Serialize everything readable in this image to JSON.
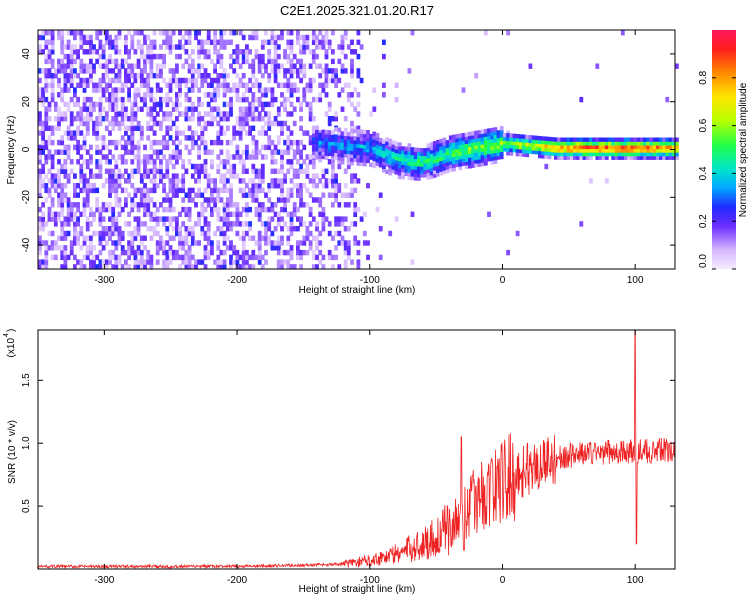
{
  "title": "C2E1.2025.321.01.20.R17",
  "colors": {
    "snr_line": "#ee2222",
    "spectrogram_low": "#7a2cff",
    "frame": "#000000"
  },
  "chart_data": [
    {
      "id": "spectrogram",
      "type": "heatmap",
      "xlabel": "Height of straight line (km)",
      "ylabel": "Frequency (Hz)",
      "xlim": [
        -350,
        130
      ],
      "ylim": [
        -50,
        50
      ],
      "x_ticks": [
        -300,
        -200,
        -100,
        0,
        100
      ],
      "y_ticks": [
        -40,
        -20,
        0,
        20,
        40
      ],
      "x_tick_labels": [
        "-300",
        "-200",
        "-100",
        "0",
        "100"
      ],
      "y_tick_labels": [
        "-40",
        "-20",
        "0",
        "20",
        "40"
      ],
      "colorbar": {
        "label": "Normalized spectral amplitude",
        "range": [
          0.0,
          1.0
        ],
        "ticks": [
          0.0,
          0.2,
          0.4,
          0.6,
          0.8
        ],
        "tick_labels": [
          "0.0",
          "0.2",
          "0.4",
          "0.6",
          "0.8"
        ]
      },
      "regions": [
        {
          "x_range": [
            -350,
            -110
          ],
          "description": "broadband noise, amplitude ~0.05–0.35"
        },
        {
          "x_range": [
            -140,
            130
          ],
          "feature": "narrow line near 0 Hz",
          "amplitude": [
            0.3,
            1.0
          ]
        }
      ],
      "signal_track": [
        {
          "x": -140,
          "f": 2,
          "amp": 0.3
        },
        {
          "x": -100,
          "f": 0,
          "amp": 0.38
        },
        {
          "x": -80,
          "f": -5,
          "amp": 0.45
        },
        {
          "x": -60,
          "f": -6,
          "amp": 0.48
        },
        {
          "x": -40,
          "f": -2,
          "amp": 0.55
        },
        {
          "x": -20,
          "f": 0,
          "amp": 0.6
        },
        {
          "x": 0,
          "f": 2,
          "amp": 0.62
        },
        {
          "x": 20,
          "f": 1,
          "amp": 0.7
        },
        {
          "x": 40,
          "f": 0,
          "amp": 0.85
        },
        {
          "x": 60,
          "f": 0,
          "amp": 0.95
        },
        {
          "x": 80,
          "f": 0,
          "amp": 0.95
        },
        {
          "x": 100,
          "f": 0,
          "amp": 0.92
        },
        {
          "x": 130,
          "f": 0,
          "amp": 0.88
        }
      ]
    },
    {
      "id": "snr",
      "type": "line",
      "xlabel": "Height of straight line (km)",
      "ylabel": "SNR (10 * v/v)",
      "y_multiplier_label": "(x10",
      "y_multiplier_exp": "4",
      "xlim": [
        -350,
        130
      ],
      "ylim": [
        0,
        1.9
      ],
      "x_ticks": [
        -300,
        -200,
        -100,
        0,
        100
      ],
      "y_ticks": [
        0.5,
        1.0,
        1.5
      ],
      "x_tick_labels": [
        "-300",
        "-200",
        "-100",
        "0",
        "100"
      ],
      "y_tick_labels": [
        "0.5",
        "1.0",
        "1.5"
      ],
      "series": [
        {
          "envelope": [
            {
              "x": -350,
              "y": 0.02
            },
            {
              "x": -200,
              "y": 0.02
            },
            {
              "x": -150,
              "y": 0.03
            },
            {
              "x": -120,
              "y": 0.04
            },
            {
              "x": -100,
              "y": 0.07
            },
            {
              "x": -80,
              "y": 0.12
            },
            {
              "x": -60,
              "y": 0.2
            },
            {
              "x": -40,
              "y": 0.32
            },
            {
              "x": -30,
              "y": 0.45
            },
            {
              "x": -20,
              "y": 0.55
            },
            {
              "x": 0,
              "y": 0.7
            },
            {
              "x": 20,
              "y": 0.8
            },
            {
              "x": 40,
              "y": 0.88
            },
            {
              "x": 60,
              "y": 0.92
            },
            {
              "x": 80,
              "y": 0.93
            },
            {
              "x": 100,
              "y": 0.93
            },
            {
              "x": 130,
              "y": 0.95
            }
          ],
          "spikes": [
            {
              "x": -31,
              "y": 1.05
            },
            {
              "x": -29,
              "y": 0.15
            },
            {
              "x": 31,
              "y": 1.02
            },
            {
              "x": 100,
              "y": 1.9
            },
            {
              "x": 101,
              "y": 0.2
            }
          ]
        }
      ]
    }
  ]
}
